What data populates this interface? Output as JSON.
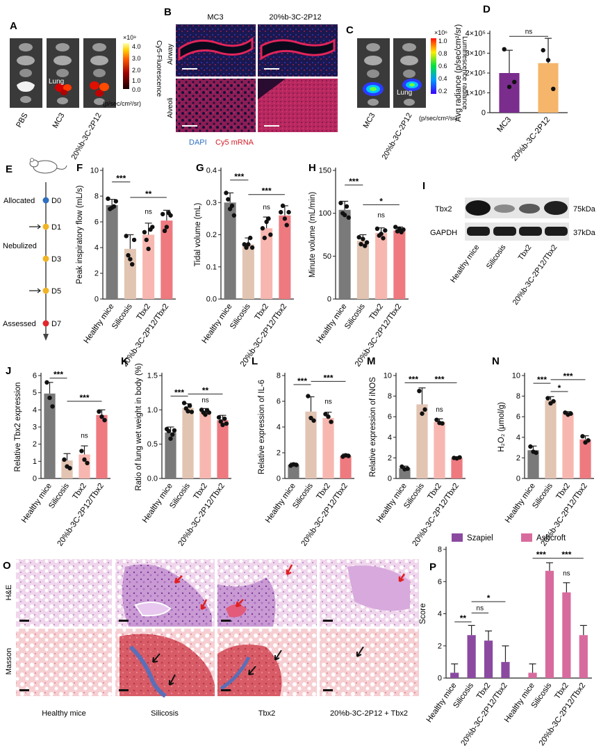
{
  "panels": {
    "A": {
      "letter": "A",
      "lanes": [
        "PBS",
        "MC3",
        "20%b-3C-2P12"
      ],
      "organ_label": "Lung",
      "colorbar": {
        "exponent": "×10⁹",
        "ticks": [
          "4.0",
          "3.0",
          "2.0",
          "1.0",
          "0.0"
        ],
        "title": "Cy5-Fluorescence",
        "unit": "(p/sec/cm²/sr)"
      }
    },
    "B": {
      "letter": "B",
      "cols": [
        "MC3",
        "20%b-3C-2P12"
      ],
      "rows": [
        "Airway",
        "Alveoli"
      ],
      "legend": [
        "DAPI",
        "Cy5 mRNA"
      ]
    },
    "C": {
      "letter": "C",
      "lanes": [
        "MC3",
        "20%b-3C-2P12"
      ],
      "organ_label": "Lung",
      "colorbar": {
        "exponent": "×10⁶",
        "ticks": [
          "1.0",
          "0.8",
          "0.6",
          "0.4",
          "0.2"
        ],
        "title": "Luminescence radiance",
        "unit": "(p/sec/cm²/sr)"
      }
    },
    "E": {
      "letter": "E",
      "days": [
        "D0",
        "D1",
        "D3",
        "D5",
        "D7"
      ],
      "labels": [
        "Allocated",
        "Nebulized",
        "Assessed"
      ]
    },
    "I": {
      "letter": "I",
      "bands": [
        "Tbx2",
        "GAPDH"
      ],
      "sizes": [
        "75kDa",
        "37kDa"
      ],
      "lanes": [
        "Healthy mice",
        "Silicosis",
        "Tbx2",
        "20%b-3C-2P12/Tbx2"
      ]
    },
    "O": {
      "letter": "O",
      "rows": [
        "H&E",
        "Masson"
      ],
      "cols": [
        "Healthy mice",
        "Silicosis",
        "Tbx2",
        "20%b-3C-2P12 + Tbx2"
      ]
    }
  },
  "chart_data": [
    {
      "id": "D",
      "letter": "D",
      "type": "bar",
      "categories": [
        "MC3",
        "20%b-3C-2P12"
      ],
      "values": [
        200000,
        250000
      ],
      "errors": [
        115000,
        125000
      ],
      "points": [
        [
          320000,
          130000,
          155000
        ],
        [
          315000,
          265000,
          120000
        ]
      ],
      "colors": [
        "#7b2d8e",
        "#f5b66b"
      ],
      "ylabel": "Avg radiance (p/sec/cm²/sr)",
      "ylim": [
        0,
        400000
      ],
      "ticks": [
        "0",
        "1×10⁵",
        "2×10⁵",
        "3×10⁵",
        "4×10⁵"
      ],
      "sig": [
        {
          "a": 0,
          "b": 1,
          "label": "ns",
          "y": 385000
        }
      ]
    },
    {
      "id": "F",
      "letter": "F",
      "type": "bar",
      "categories": [
        "Healthy mice",
        "Silicosis",
        "Tbx2",
        "20%b-3C-2P12/Tbx2"
      ],
      "values": [
        7.3,
        3.9,
        5.0,
        6.1
      ],
      "errors": [
        0.45,
        1.1,
        0.9,
        0.8
      ],
      "points": [
        [
          7.8,
          7.0,
          7.1,
          7.2,
          7.6
        ],
        [
          4.9,
          3.4,
          3.1,
          2.7,
          4.6
        ],
        [
          5.2,
          4.6,
          3.9,
          5.4,
          5.6
        ],
        [
          6.6,
          5.3,
          5.6,
          6.7,
          6.5
        ]
      ],
      "colors": [
        "#7a7a7a",
        "#e2c4b2",
        "#f7b7b0",
        "#ee7a80"
      ],
      "ylabel": "Peak inspiratory flow (mL/s)",
      "ylim": [
        0,
        10
      ],
      "ticks": [
        "0",
        "2",
        "4",
        "6",
        "8",
        "10"
      ],
      "sig": [
        {
          "a": 0,
          "b": 1,
          "label": "***",
          "y": 9.1
        },
        {
          "a": 1,
          "b": 3,
          "label": "**",
          "y": 7.9
        },
        {
          "a": 2,
          "b": 2,
          "label": "ns",
          "y": 6.4,
          "single": true
        }
      ]
    },
    {
      "id": "G",
      "letter": "G",
      "type": "bar",
      "categories": [
        "Healthy mice",
        "Silicosis",
        "Tbx2",
        "20%b-3C-2P12/Tbx2"
      ],
      "values": [
        0.3,
        0.17,
        0.22,
        0.26
      ],
      "errors": [
        0.03,
        0.02,
        0.035,
        0.03
      ],
      "points": [
        [
          0.33,
          0.31,
          0.28,
          0.29,
          0.26
        ],
        [
          0.17,
          0.16,
          0.17,
          0.19,
          0.16
        ],
        [
          0.22,
          0.19,
          0.24,
          0.25,
          0.2
        ],
        [
          0.27,
          0.29,
          0.25,
          0.23,
          0.27
        ]
      ],
      "colors": [
        "#7a7a7a",
        "#e2c4b2",
        "#f7b7b0",
        "#ee7a80"
      ],
      "ylabel": "Tidal volume (mL)",
      "ylim": [
        0,
        0.4
      ],
      "ticks": [
        "0.0",
        "0.1",
        "0.2",
        "0.3",
        "0.4"
      ],
      "sig": [
        {
          "a": 0,
          "b": 1,
          "label": "***",
          "y": 0.37
        },
        {
          "a": 1,
          "b": 3,
          "label": "***",
          "y": 0.325
        },
        {
          "a": 2,
          "b": 2,
          "label": "ns",
          "y": 0.27,
          "single": true
        }
      ]
    },
    {
      "id": "H",
      "letter": "H",
      "type": "bar",
      "categories": [
        "Healthy mice",
        "Silicosis",
        "Tbx2",
        "20%b-3C-2P12/Tbx2"
      ],
      "values": [
        104,
        68,
        77,
        80
      ],
      "errors": [
        10,
        7,
        6,
        4
      ],
      "points": [
        [
          112,
          100,
          98,
          108,
          95
        ],
        [
          72,
          64,
          70,
          62,
          66
        ],
        [
          82,
          74,
          76,
          71,
          80
        ],
        [
          84,
          79,
          82,
          78,
          81
        ]
      ],
      "colors": [
        "#7a7a7a",
        "#e2c4b2",
        "#f7b7b0",
        "#ee7a80"
      ],
      "ylabel": "Minute volume (mL/min)",
      "ylim": [
        0,
        150
      ],
      "ticks": [
        "0",
        "50",
        "100",
        "150"
      ],
      "sig": [
        {
          "a": 0,
          "b": 1,
          "label": "***",
          "y": 133
        },
        {
          "a": 1,
          "b": 3,
          "label": "*",
          "y": 110
        },
        {
          "a": 2,
          "b": 2,
          "label": "ns",
          "y": 92,
          "single": true
        }
      ]
    },
    {
      "id": "J",
      "letter": "J",
      "type": "bar",
      "categories": [
        "Healthy mice",
        "Silicosis",
        "Tbx2",
        "20%b-3C-2P12/Tbx2"
      ],
      "values": [
        4.95,
        1.05,
        1.4,
        3.7
      ],
      "errors": [
        0.65,
        0.4,
        0.5,
        0.3
      ],
      "points": [
        [
          5.6,
          4.7,
          4.2
        ],
        [
          1.1,
          0.7,
          0.6
        ],
        [
          1.6,
          1.1,
          0.9
        ],
        [
          3.9,
          3.6,
          3.4
        ]
      ],
      "colors": [
        "#7a7a7a",
        "#e2c4b2",
        "#f7b7b0",
        "#ee7a80"
      ],
      "ylabel": "Relative Tbx2 expression",
      "ylim": [
        0,
        6
      ],
      "ticks": [
        "0",
        "1",
        "2",
        "3",
        "4",
        "5",
        "6"
      ],
      "sig": [
        {
          "a": 0,
          "b": 1,
          "label": "***",
          "y": 5.85
        },
        {
          "a": 1,
          "b": 3,
          "label": "***",
          "y": 4.5
        },
        {
          "a": 2,
          "b": 2,
          "label": "ns",
          "y": 2.2,
          "single": true
        }
      ]
    },
    {
      "id": "K",
      "letter": "K",
      "type": "bar",
      "categories": [
        "Healthy mice",
        "Silicosis",
        "Tbx2",
        "20%b-3C-2P12/Tbx2"
      ],
      "values": [
        0.67,
        1.03,
        0.97,
        0.85
      ],
      "errors": [
        0.08,
        0.06,
        0.05,
        0.07
      ],
      "points": [
        [
          0.72,
          0.69,
          0.58,
          0.64,
          0.7
        ],
        [
          1.1,
          1.02,
          0.98,
          1.06,
          0.97
        ],
        [
          1.0,
          0.96,
          0.93,
          0.99,
          0.96
        ],
        [
          0.89,
          0.83,
          0.78,
          0.87,
          0.8
        ]
      ],
      "colors": [
        "#7a7a7a",
        "#e2c4b2",
        "#f7b7b0",
        "#ee7a80"
      ],
      "ylabel": "Ratio of lung wet weight in body (%)",
      "ylim": [
        0,
        1.5
      ],
      "ticks": [
        "0.0",
        "0.5",
        "1.0",
        "1.5"
      ],
      "sig": [
        {
          "a": 0,
          "b": 1,
          "label": "***",
          "y": 1.2
        },
        {
          "a": 1,
          "b": 3,
          "label": "**",
          "y": 1.23
        },
        {
          "a": 2,
          "b": 2,
          "label": "ns",
          "y": 1.07,
          "single": true
        }
      ]
    },
    {
      "id": "L",
      "letter": "L",
      "type": "bar",
      "categories": [
        "Healthy mice",
        "Silicosis",
        "Tbx2",
        "20%b-3C-2P12/Tbx2"
      ],
      "values": [
        1.05,
        5.2,
        4.7,
        1.75
      ],
      "errors": [
        0.15,
        1.15,
        0.45,
        0.15
      ],
      "points": [
        [
          1.0,
          1.1,
          1.05
        ],
        [
          6.4,
          4.7,
          4.5
        ],
        [
          5.0,
          4.8,
          4.4
        ],
        [
          1.7,
          1.8,
          1.75
        ]
      ],
      "colors": [
        "#7a7a7a",
        "#e2c4b2",
        "#f7b7b0",
        "#ee7a80"
      ],
      "ylabel": "Relative expression of IL-6",
      "ylim": [
        0,
        8
      ],
      "ticks": [
        "0",
        "2",
        "4",
        "6",
        "8"
      ],
      "sig": [
        {
          "a": 0,
          "b": 1,
          "label": "***",
          "y": 7.3
        },
        {
          "a": 1,
          "b": 3,
          "label": "***",
          "y": 7.55
        },
        {
          "a": 2,
          "b": 2,
          "label": "ns",
          "y": 5.6,
          "single": true
        }
      ]
    },
    {
      "id": "M",
      "letter": "M",
      "type": "bar",
      "categories": [
        "Healthy mice",
        "Silicosis",
        "Tbx2",
        "20%b-3C-2P12/Tbx2"
      ],
      "values": [
        1.0,
        7.2,
        5.5,
        2.0
      ],
      "errors": [
        0.2,
        1.6,
        0.3,
        0.1
      ],
      "points": [
        [
          1.15,
          0.9,
          0.95
        ],
        [
          8.5,
          6.3,
          6.7
        ],
        [
          5.7,
          5.4,
          5.35
        ],
        [
          2.0,
          1.95,
          2.05
        ]
      ],
      "colors": [
        "#7a7a7a",
        "#e2c4b2",
        "#f7b7b0",
        "#ee7a80"
      ],
      "ylabel": "Relative expression of iNOS",
      "ylim": [
        0,
        10
      ],
      "ticks": [
        "0",
        "2",
        "4",
        "6",
        "8",
        "10"
      ],
      "sig": [
        {
          "a": 0,
          "b": 1,
          "label": "***",
          "y": 9.3
        },
        {
          "a": 1,
          "b": 3,
          "label": "***",
          "y": 9.3
        },
        {
          "a": 2,
          "b": 2,
          "label": "ns",
          "y": 6.2,
          "single": true
        }
      ]
    },
    {
      "id": "N",
      "letter": "N",
      "type": "bar",
      "categories": [
        "Healthy mice",
        "Silicosis",
        "Tbx2",
        "20%b-3C-2P12/Tbx2"
      ],
      "values": [
        2.75,
        7.6,
        6.3,
        3.8
      ],
      "errors": [
        0.4,
        0.35,
        0.2,
        0.35
      ],
      "points": [
        [
          3.1,
          2.6,
          2.5
        ],
        [
          7.8,
          7.3,
          7.5
        ],
        [
          6.4,
          6.2,
          6.3
        ],
        [
          4.1,
          3.5,
          3.7
        ]
      ],
      "colors": [
        "#7a7a7a",
        "#e2c4b2",
        "#f7b7b0",
        "#ee7a80"
      ],
      "ylabel": "H₂O₂ (μmol/g)",
      "ylim": [
        0,
        10
      ],
      "ticks": [
        "0",
        "2",
        "4",
        "6",
        "8",
        "10"
      ],
      "sig": [
        {
          "a": 0,
          "b": 1,
          "label": "***",
          "y": 9.25
        },
        {
          "a": 1,
          "b": 2,
          "label": "*",
          "y": 8.45
        },
        {
          "a": 1,
          "b": 3,
          "label": "***",
          "y": 9.6
        }
      ]
    },
    {
      "id": "P",
      "letter": "P",
      "type": "bar",
      "categories": [
        "Healthy mice",
        "Silicosis",
        "Tbx2",
        "20%b-3C-2P12/Tbx2",
        "Healthy mice",
        "Silicosis",
        "Tbx2",
        "20%b-3C-2P12/Tbx2"
      ],
      "values": [
        0.33,
        2.67,
        2.33,
        1.0,
        0.33,
        6.67,
        5.33,
        2.67
      ],
      "errors": [
        0.55,
        0.6,
        0.6,
        1.0,
        0.55,
        0.5,
        0.6,
        0.6
      ],
      "colors": [
        "#8b4aa0",
        "#8b4aa0",
        "#8b4aa0",
        "#8b4aa0",
        "#d86b9e",
        "#d86b9e",
        "#d86b9e",
        "#d86b9e"
      ],
      "series": [
        {
          "name": "Szapiel",
          "color": "#8b4aa0"
        },
        {
          "name": "Ashcroft",
          "color": "#d86b9e"
        }
      ],
      "ylabel": "Score",
      "ylim": [
        0,
        8
      ],
      "ticks": [
        "0",
        "2",
        "4",
        "6",
        "8"
      ],
      "sig": [
        {
          "a": 0,
          "b": 1,
          "label": "**",
          "y": 3.5
        },
        {
          "a": 1,
          "b": 2,
          "label": "ns",
          "y": 4.05
        },
        {
          "a": 1,
          "b": 3,
          "label": "*",
          "y": 4.75
        },
        {
          "a": 4,
          "b": 5,
          "label": "***",
          "y": 7.45
        },
        {
          "a": 5,
          "b": 7,
          "label": "***",
          "y": 7.45
        },
        {
          "a": 6,
          "b": 6,
          "label": "ns",
          "y": 6.2,
          "single": true
        }
      ]
    }
  ]
}
